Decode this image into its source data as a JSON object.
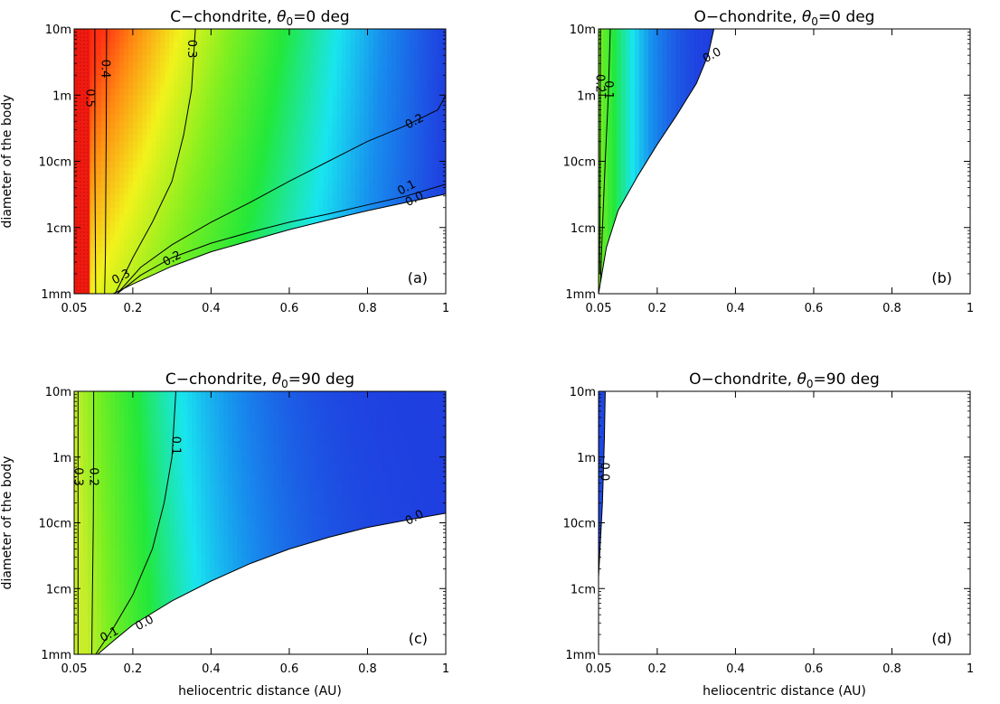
{
  "figure": {
    "xlabel": "heliocentric distance (AU)",
    "ylabel": "diameter of the body"
  },
  "chart_data": [
    {
      "type": "heatmap",
      "title_prefix": "C−chondrite, ",
      "title_sym": "θ",
      "title_sub": "0",
      "title_suffix": "=0 deg",
      "panel_label": "(a)",
      "xlabel": "",
      "ylabel": "diameter of the body",
      "x_ticks": [
        "0.05",
        "0.2",
        "0.4",
        "0.6",
        "0.8",
        "1"
      ],
      "y_ticks": [
        "1mm",
        "1cm",
        "10cm",
        "1m",
        "10m"
      ],
      "xlim": [
        0.05,
        1
      ],
      "ylim_m": [
        0.001,
        10
      ],
      "y_log": true,
      "color_stops": [
        [
          0.0,
          "#1f3fe0"
        ],
        [
          0.08,
          "#1790ee"
        ],
        [
          0.14,
          "#19e5ef"
        ],
        [
          0.22,
          "#22e83a"
        ],
        [
          0.3,
          "#7fef20"
        ],
        [
          0.38,
          "#f2f21c"
        ],
        [
          0.45,
          "#ff8a12"
        ],
        [
          0.5,
          "#ff3412"
        ],
        [
          0.55,
          "#f01a10"
        ]
      ],
      "boundary": [
        [
          0.15,
          0.001
        ],
        [
          0.2,
          0.0014
        ],
        [
          0.3,
          0.0026
        ],
        [
          0.4,
          0.0043
        ],
        [
          0.5,
          0.0063
        ],
        [
          0.6,
          0.0093
        ],
        [
          0.7,
          0.013
        ],
        [
          0.8,
          0.018
        ],
        [
          0.9,
          0.024
        ],
        [
          1.0,
          0.032
        ]
      ],
      "contours": [
        {
          "level": 0.5,
          "label": "0.5",
          "points": [
            [
              0.105,
              0.001
            ],
            [
              0.104,
              0.01
            ],
            [
              0.103,
              0.1
            ],
            [
              0.103,
              1
            ],
            [
              0.103,
              10
            ]
          ]
        },
        {
          "level": 0.4,
          "label": "0.4",
          "points": [
            [
              0.128,
              0.001
            ],
            [
              0.13,
              0.004
            ],
            [
              0.131,
              0.03
            ],
            [
              0.132,
              0.3
            ],
            [
              0.133,
              10
            ]
          ]
        },
        {
          "level": 0.3,
          "label": "0.3",
          "points": [
            [
              0.155,
              0.001
            ],
            [
              0.2,
              0.0035
            ],
            [
              0.25,
              0.012
            ],
            [
              0.3,
              0.05
            ],
            [
              0.33,
              0.25
            ],
            [
              0.35,
              1.2
            ],
            [
              0.36,
              10
            ]
          ]
        },
        {
          "level": 0.2,
          "label": "0.2",
          "points": [
            [
              0.16,
              0.001
            ],
            [
              0.22,
              0.0025
            ],
            [
              0.3,
              0.0055
            ],
            [
              0.4,
              0.012
            ],
            [
              0.5,
              0.024
            ],
            [
              0.6,
              0.05
            ],
            [
              0.7,
              0.1
            ],
            [
              0.8,
              0.2
            ],
            [
              0.9,
              0.35
            ],
            [
              0.98,
              0.6
            ],
            [
              1.0,
              1.0
            ]
          ]
        },
        {
          "level": 0.1,
          "label": "0.1",
          "points": [
            [
              0.16,
              0.001
            ],
            [
              0.22,
              0.0019
            ],
            [
              0.3,
              0.0035
            ],
            [
              0.4,
              0.0058
            ],
            [
              0.5,
              0.0085
            ],
            [
              0.6,
              0.012
            ],
            [
              0.7,
              0.016
            ],
            [
              0.8,
              0.022
            ],
            [
              0.9,
              0.03
            ],
            [
              1.0,
              0.045
            ]
          ]
        },
        {
          "level": 0.0,
          "label": "0.0",
          "points": [
            [
              0.15,
              0.001
            ],
            [
              0.2,
              0.0014
            ],
            [
              0.3,
              0.0026
            ],
            [
              0.4,
              0.0043
            ],
            [
              0.5,
              0.0063
            ],
            [
              0.6,
              0.0093
            ],
            [
              0.7,
              0.013
            ],
            [
              0.8,
              0.018
            ],
            [
              0.9,
              0.024
            ],
            [
              1.0,
              0.032
            ]
          ]
        }
      ]
    },
    {
      "type": "heatmap",
      "title_prefix": "O−chondrite, ",
      "title_sym": "θ",
      "title_sub": "0",
      "title_suffix": "=0 deg",
      "panel_label": "(b)",
      "xlabel": "",
      "ylabel": "",
      "x_ticks": [
        "0.05",
        "0.2",
        "0.4",
        "0.6",
        "0.8",
        "1"
      ],
      "y_ticks": [
        "1mm",
        "1cm",
        "10cm",
        "1m",
        "10m"
      ],
      "xlim": [
        0.05,
        1
      ],
      "ylim_m": [
        0.001,
        10
      ],
      "y_log": true,
      "color_stops": [
        [
          0.0,
          "#1f3fe0"
        ],
        [
          0.08,
          "#1790ee"
        ],
        [
          0.14,
          "#19e5ef"
        ],
        [
          0.22,
          "#22e83a"
        ],
        [
          0.3,
          "#7fef20"
        ]
      ],
      "boundary": [
        [
          0.05,
          0.001
        ],
        [
          0.07,
          0.005
        ],
        [
          0.1,
          0.018
        ],
        [
          0.15,
          0.06
        ],
        [
          0.2,
          0.18
        ],
        [
          0.25,
          0.5
        ],
        [
          0.3,
          1.5
        ],
        [
          0.33,
          4
        ],
        [
          0.345,
          10
        ]
      ],
      "contours": [
        {
          "level": 0.2,
          "label": "0.2",
          "points": [
            [
              0.053,
              0.002
            ],
            [
              0.054,
              0.05
            ],
            [
              0.055,
              10
            ]
          ]
        },
        {
          "level": 0.1,
          "label": "0.1",
          "points": [
            [
              0.055,
              0.0015
            ],
            [
              0.06,
              0.01
            ],
            [
              0.067,
              0.1
            ],
            [
              0.075,
              1
            ],
            [
              0.08,
              10
            ]
          ]
        },
        {
          "level": 0.0,
          "label": "0.0",
          "points": [
            [
              0.05,
              0.001
            ],
            [
              0.07,
              0.005
            ],
            [
              0.1,
              0.018
            ],
            [
              0.15,
              0.06
            ],
            [
              0.2,
              0.18
            ],
            [
              0.25,
              0.5
            ],
            [
              0.3,
              1.5
            ],
            [
              0.33,
              4
            ],
            [
              0.345,
              10
            ]
          ]
        }
      ]
    },
    {
      "type": "heatmap",
      "title_prefix": "C−chondrite, ",
      "title_sym": "θ",
      "title_sub": "0",
      "title_suffix": "=90 deg",
      "panel_label": "(c)",
      "xlabel": "heliocentric distance (AU)",
      "ylabel": "diameter of the body",
      "x_ticks": [
        "0.05",
        "0.2",
        "0.4",
        "0.6",
        "0.8",
        "1"
      ],
      "y_ticks": [
        "1mm",
        "1cm",
        "10cm",
        "1m",
        "10m"
      ],
      "xlim": [
        0.05,
        1
      ],
      "ylim_m": [
        0.001,
        10
      ],
      "y_log": true,
      "color_stops": [
        [
          0.0,
          "#1f3fe0"
        ],
        [
          0.06,
          "#1790ee"
        ],
        [
          0.12,
          "#19e5ef"
        ],
        [
          0.2,
          "#22e83a"
        ],
        [
          0.3,
          "#7fef20"
        ],
        [
          0.36,
          "#c8ee2a"
        ]
      ],
      "boundary": [
        [
          0.11,
          0.001
        ],
        [
          0.15,
          0.0016
        ],
        [
          0.2,
          0.0028
        ],
        [
          0.3,
          0.0065
        ],
        [
          0.4,
          0.013
        ],
        [
          0.5,
          0.024
        ],
        [
          0.6,
          0.04
        ],
        [
          0.7,
          0.06
        ],
        [
          0.8,
          0.085
        ],
        [
          0.9,
          0.11
        ],
        [
          1.0,
          0.14
        ]
      ],
      "contours": [
        {
          "level": 0.3,
          "label": "0.3",
          "points": [
            [
              0.06,
              0.001
            ],
            [
              0.06,
              0.01
            ],
            [
              0.06,
              1
            ],
            [
              0.06,
              10
            ]
          ]
        },
        {
          "level": 0.2,
          "label": "0.2",
          "points": [
            [
              0.095,
              0.001
            ],
            [
              0.097,
              0.01
            ],
            [
              0.099,
              0.1
            ],
            [
              0.1,
              1
            ],
            [
              0.1,
              10
            ]
          ]
        },
        {
          "level": 0.1,
          "label": "0.1",
          "points": [
            [
              0.105,
              0.001
            ],
            [
              0.15,
              0.0025
            ],
            [
              0.2,
              0.008
            ],
            [
              0.25,
              0.04
            ],
            [
              0.28,
              0.2
            ],
            [
              0.3,
              1
            ],
            [
              0.31,
              10
            ]
          ]
        },
        {
          "level": 0.0,
          "label": "0.0",
          "points": [
            [
              0.11,
              0.001
            ],
            [
              0.15,
              0.0016
            ],
            [
              0.2,
              0.0028
            ],
            [
              0.3,
              0.0065
            ],
            [
              0.4,
              0.013
            ],
            [
              0.5,
              0.024
            ],
            [
              0.6,
              0.04
            ],
            [
              0.7,
              0.06
            ],
            [
              0.8,
              0.085
            ],
            [
              0.9,
              0.11
            ],
            [
              1.0,
              0.14
            ]
          ]
        }
      ]
    },
    {
      "type": "heatmap",
      "title_prefix": "O−chondrite, ",
      "title_sym": "θ",
      "title_sub": "0",
      "title_suffix": "=90 deg",
      "panel_label": "(d)",
      "xlabel": "heliocentric distance (AU)",
      "ylabel": "",
      "x_ticks": [
        "0.05",
        "0.2",
        "0.4",
        "0.6",
        "0.8",
        "1"
      ],
      "y_ticks": [
        "1mm",
        "1cm",
        "10cm",
        "1m",
        "10m"
      ],
      "xlim": [
        0.05,
        1
      ],
      "ylim_m": [
        0.001,
        10
      ],
      "y_log": true,
      "color_stops": [
        [
          0.0,
          "#1f3fe0"
        ],
        [
          0.03,
          "#1f5ae6"
        ]
      ],
      "boundary": [
        [
          0.05,
          0.015
        ],
        [
          0.06,
          0.2
        ],
        [
          0.065,
          2
        ],
        [
          0.067,
          10
        ]
      ],
      "contours": [
        {
          "level": 0.0,
          "label": "0.0",
          "points": [
            [
              0.05,
              0.015
            ],
            [
              0.06,
              0.2
            ],
            [
              0.065,
              2
            ],
            [
              0.067,
              10
            ]
          ]
        }
      ]
    }
  ]
}
